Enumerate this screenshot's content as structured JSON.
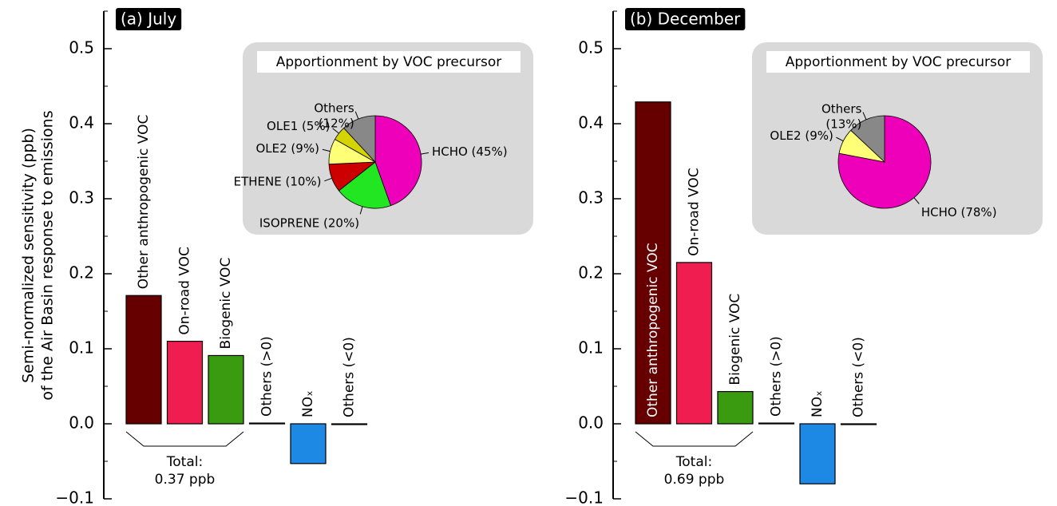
{
  "chart_data": [
    {
      "type": "bar",
      "title": "(a) July",
      "ylabel": [
        "Semi-normalized sensitivity (ppb)",
        "of the Air Basin response to emissions"
      ],
      "categories": [
        "Other anthropogenic VOC",
        "On-road VOC",
        "Biogenic VOC",
        "Others (>0)",
        "NOₓ",
        "Others (<0)"
      ],
      "values": [
        0.171,
        0.11,
        0.091,
        0.001,
        -0.053,
        -0.001
      ],
      "colors": [
        "#660000",
        "#f01e50",
        "#3a9a10",
        "#ffffff",
        "#1e88e5",
        "#ffffff"
      ],
      "ylim": [
        -0.1,
        0.55
      ],
      "yticks": [
        {
          "value": -0.1,
          "label": "−0.1"
        },
        {
          "value": 0,
          "label": "0.0"
        },
        0.1,
        0.2,
        0.3,
        0.4,
        0.5
      ],
      "minor_yticks": [
        -0.05,
        0.05,
        0.15,
        0.25,
        0.35,
        0.45,
        0.55
      ],
      "annotation": [
        "Total:",
        "0.37 ppb"
      ],
      "inset": {
        "type": "pie",
        "title": "Apportionment by VOC precursor",
        "values": [
          45,
          20,
          10,
          9,
          5,
          12
        ],
        "labels": [
          [
            "HCHO (45%)"
          ],
          [
            "ISOPRENE (20%)"
          ],
          [
            "ETHENE (10%)"
          ],
          [
            "OLE2 (9%)"
          ],
          [
            "OLE1 (5%)"
          ],
          [
            "Others",
            "(12%)"
          ]
        ],
        "colors": [
          "#ee00bb",
          "#22e622",
          "#cc0000",
          "#ffff77",
          "#d4d400",
          "#888888"
        ]
      }
    },
    {
      "type": "bar",
      "title": "(b) December",
      "categories": [
        "Other anthropogenic VOC",
        "On-road VOC",
        "Biogenic VOC",
        "Others (>0)",
        "NOₓ",
        "Others (<0)"
      ],
      "values": [
        0.429,
        0.215,
        0.043,
        0.001,
        -0.08,
        -0.001
      ],
      "colors": [
        "#660000",
        "#f01e50",
        "#3a9a10",
        "#ffffff",
        "#1e88e5",
        "#ffffff"
      ],
      "ylim": [
        -0.1,
        0.55
      ],
      "yticks": [
        {
          "value": -0.1,
          "label": "−0.1"
        },
        {
          "value": 0,
          "label": "0.0"
        },
        0.1,
        0.2,
        0.3,
        0.4,
        0.5
      ],
      "minor_yticks": [
        -0.05,
        0.05,
        0.15,
        0.25,
        0.35,
        0.45,
        0.55
      ],
      "annotation": [
        "Total:",
        "0.69 ppb"
      ],
      "inset": {
        "type": "pie",
        "title": "Apportionment by VOC precursor",
        "values": [
          78,
          9,
          13
        ],
        "labels": [
          [
            "HCHO (78%)"
          ],
          [
            "OLE2 (9%)"
          ],
          [
            "Others",
            "(13%)"
          ]
        ],
        "colors": [
          "#ee00bb",
          "#ffff77",
          "#888888"
        ]
      }
    }
  ]
}
